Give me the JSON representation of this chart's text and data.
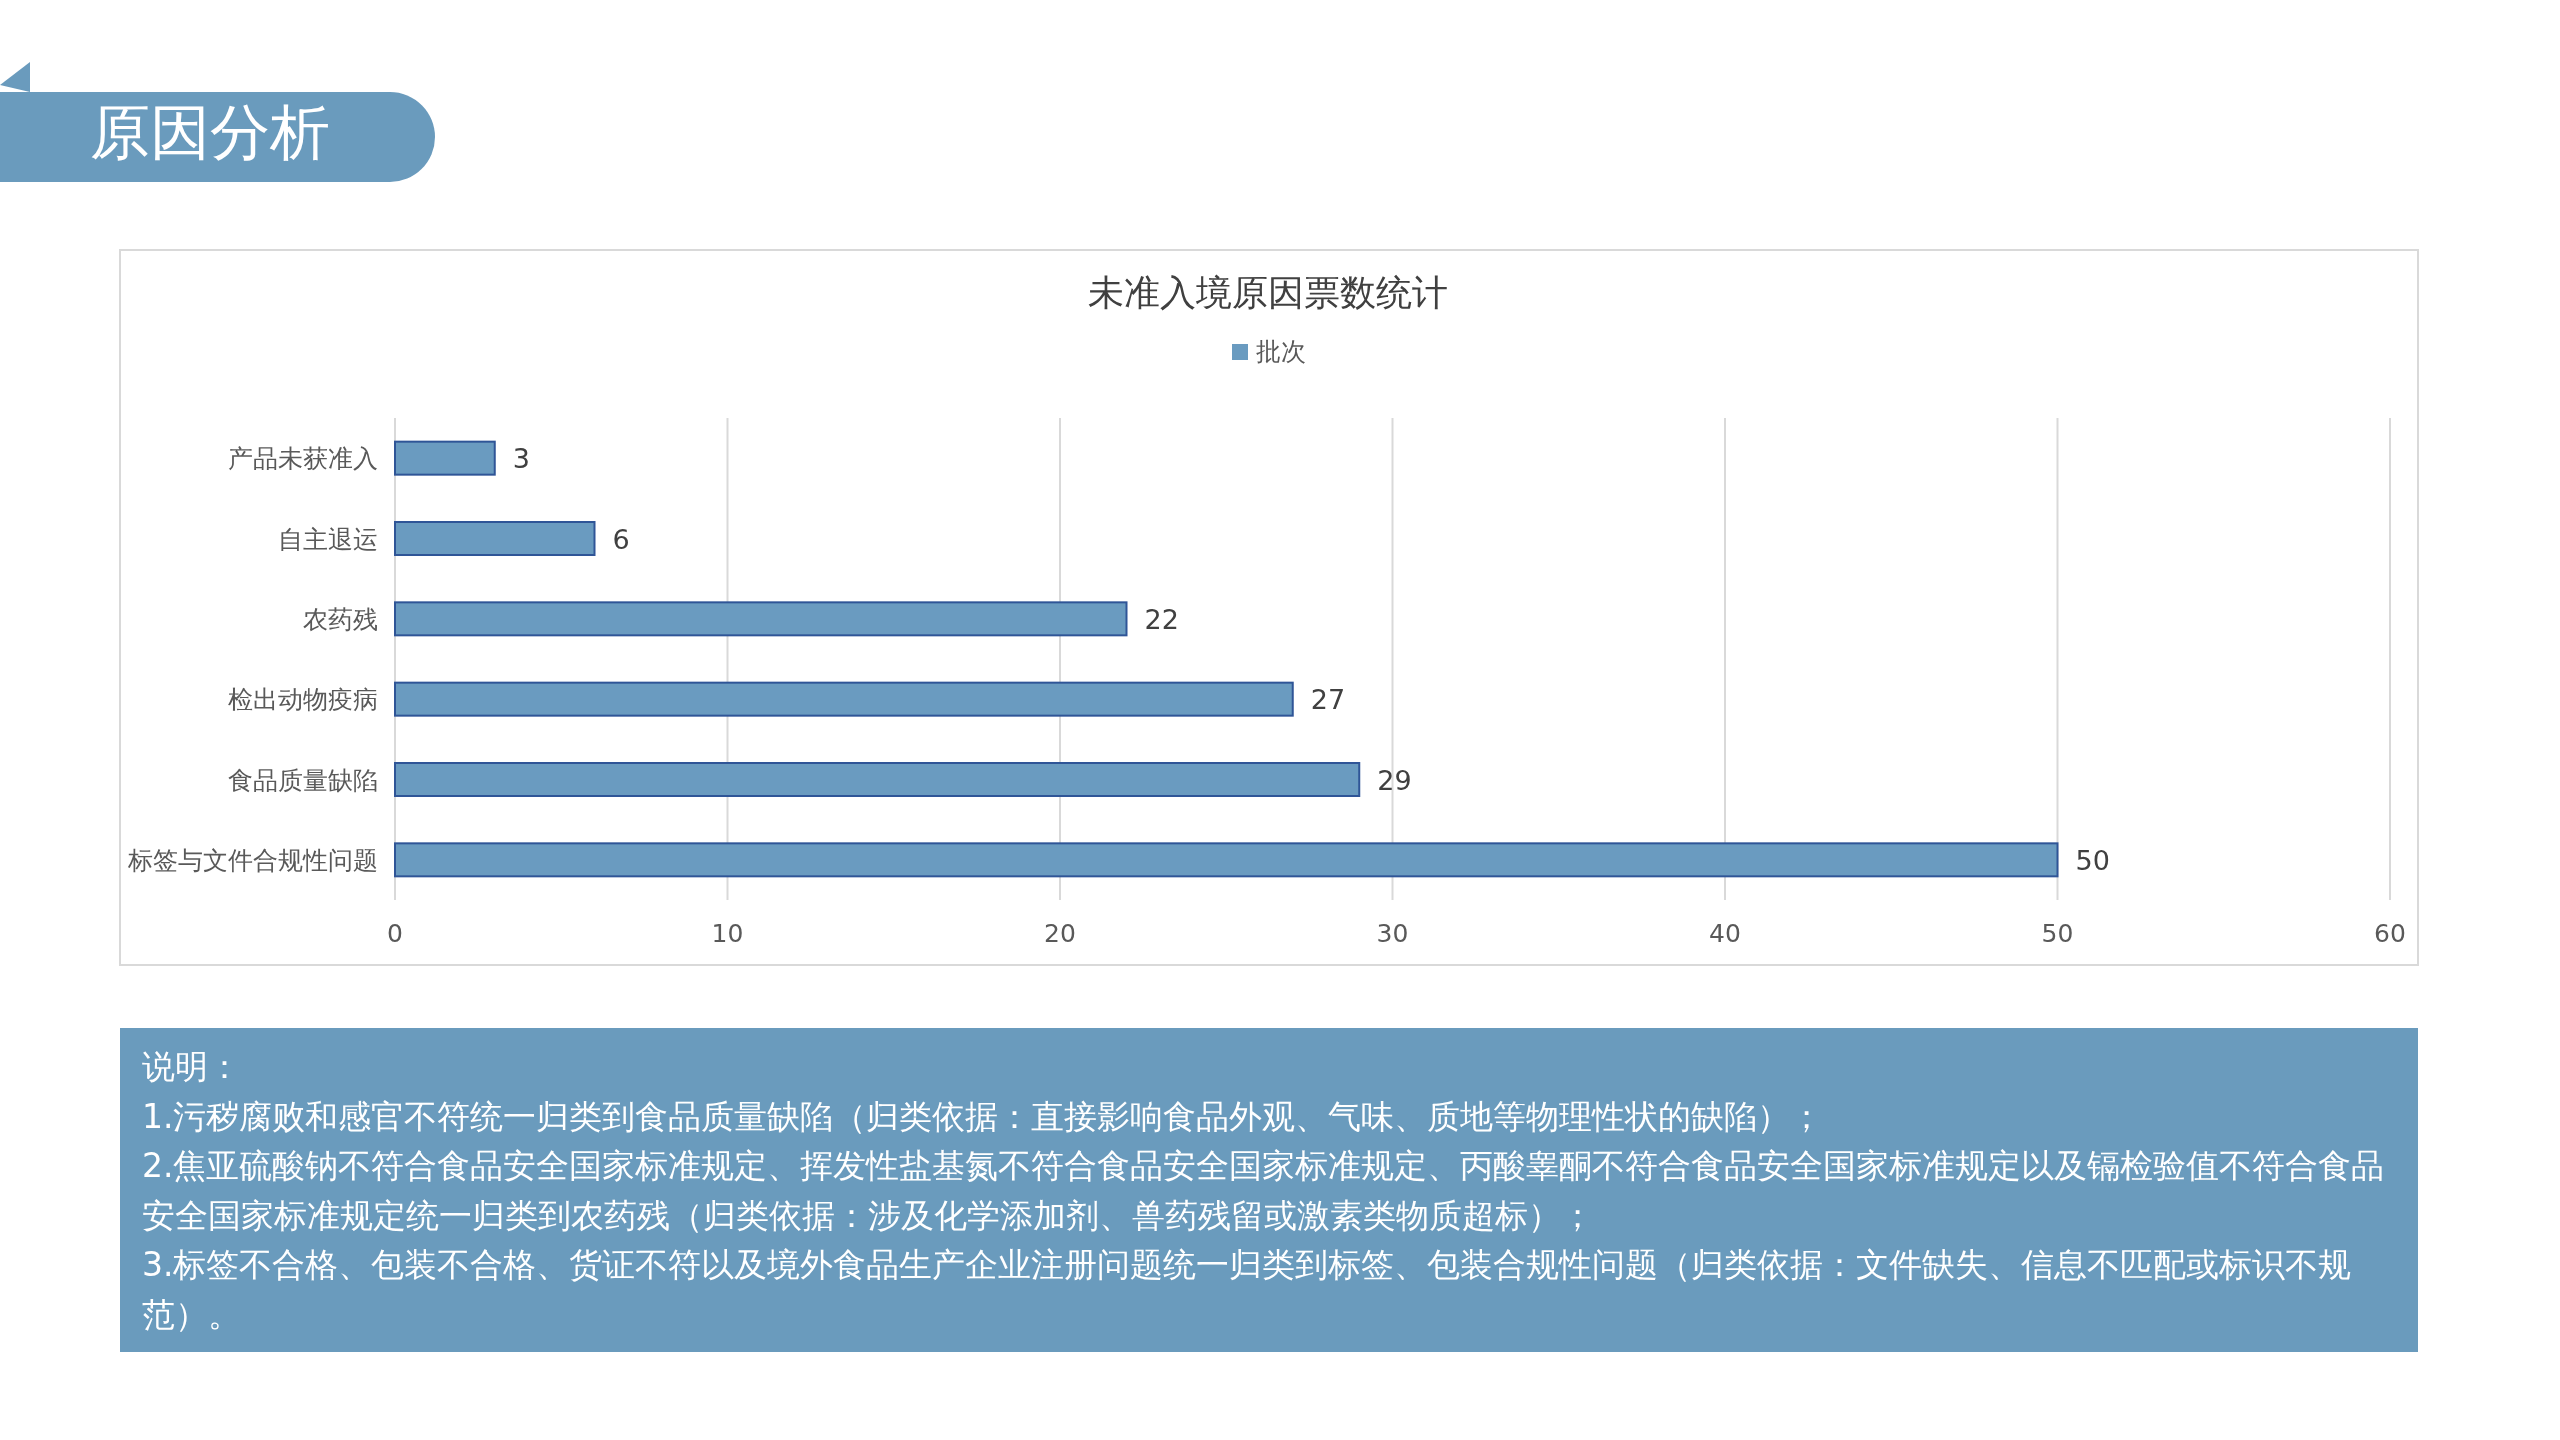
{
  "chart_data": {
    "type": "bar",
    "orientation": "horizontal",
    "title": "未准入境原因票数统计",
    "categories": [
      "产品未获准入",
      "自主退运",
      "农药残",
      "检出动物疫病",
      "食品质量缺陷",
      "标签与文件合规性问题"
    ],
    "series": [
      {
        "name": "批次",
        "color": "#6a9bc0",
        "values": [
          3,
          6,
          22,
          27,
          29,
          50
        ]
      }
    ],
    "xlim": [
      0,
      60
    ],
    "xticks": [
      0,
      10,
      20,
      30,
      40,
      50,
      60
    ],
    "grid": "x",
    "legend": "top",
    "data_labels": true,
    "annotations": [
      "原因分析",
      "说明：",
      "1.污秽腐败和感官不符统一归类到食品质量缺陷（归类依据：直接影响食品外观、气味、质地等物理性状的缺陷）；",
      "2.焦亚硫酸钠不符合食品安全国家标准规定、挥发性盐基氮不符合食品安全国家标准规定、丙酸睾酮不符合食品安全国家标准规定以及镉检验值不符合食品安全国家标准规定统一归类到农药残（归类依据：涉及化学添加剂、兽药残留或激素类物质超标）；",
      "3.标签不合格、包装不合格、货证不符以及境外食品生产企业注册问题统一归类到标签、包装合规性问题（归类依据：文件缺失、信息不匹配或标识不规范）。"
    ]
  }
}
